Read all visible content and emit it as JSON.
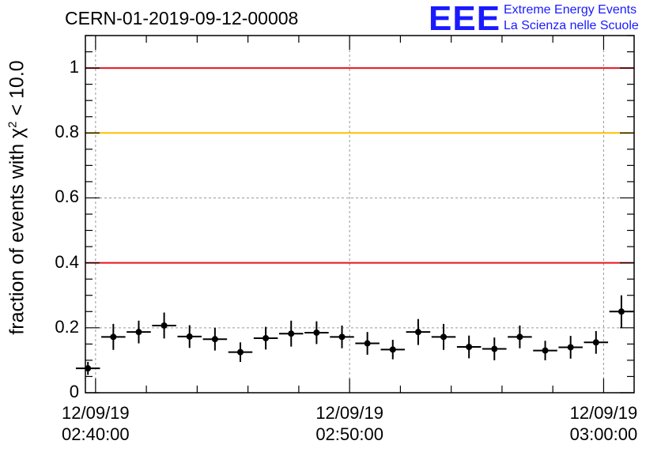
{
  "chart_data": {
    "type": "scatter",
    "title": "CERN-01-2019-09-12-00008",
    "ylabel_prefix": "fraction of events with ",
    "ylabel_symbol": "χ",
    "ylabel_sup": "2",
    "ylabel_suffix": " < 10.0",
    "ylim": [
      0,
      1.1
    ],
    "yticks": [
      {
        "value": 0,
        "label": "0"
      },
      {
        "value": 0.2,
        "label": "0.2"
      },
      {
        "value": 0.4,
        "label": "0.4"
      },
      {
        "value": 0.6,
        "label": "0.6"
      },
      {
        "value": 0.8,
        "label": "0.8"
      },
      {
        "value": 1,
        "label": "1"
      }
    ],
    "xlim_minutes": [
      -0.4,
      21.2
    ],
    "xticks": [
      {
        "minute": 0,
        "date": "12/09/19",
        "time": "02:40:00"
      },
      {
        "minute": 10,
        "date": "12/09/19",
        "time": "02:50:00"
      },
      {
        "minute": 20,
        "date": "12/09/19",
        "time": "03:00:00"
      }
    ],
    "grid": true,
    "reference_lines": [
      {
        "y": 1.0,
        "color": "#e8141c"
      },
      {
        "y": 0.8,
        "color": "#ffc000"
      },
      {
        "y": 0.4,
        "color": "#e8141c"
      }
    ],
    "points": [
      {
        "x": -0.3,
        "y": 0.075,
        "err": 0.02
      },
      {
        "x": 0.7,
        "y": 0.172,
        "err": 0.04
      },
      {
        "x": 1.7,
        "y": 0.187,
        "err": 0.035
      },
      {
        "x": 2.7,
        "y": 0.207,
        "err": 0.04
      },
      {
        "x": 3.7,
        "y": 0.173,
        "err": 0.035
      },
      {
        "x": 4.7,
        "y": 0.165,
        "err": 0.035
      },
      {
        "x": 5.7,
        "y": 0.125,
        "err": 0.03
      },
      {
        "x": 6.7,
        "y": 0.168,
        "err": 0.035
      },
      {
        "x": 7.7,
        "y": 0.182,
        "err": 0.04
      },
      {
        "x": 8.7,
        "y": 0.185,
        "err": 0.035
      },
      {
        "x": 9.7,
        "y": 0.172,
        "err": 0.035
      },
      {
        "x": 10.7,
        "y": 0.152,
        "err": 0.035
      },
      {
        "x": 11.7,
        "y": 0.133,
        "err": 0.03
      },
      {
        "x": 12.7,
        "y": 0.187,
        "err": 0.04
      },
      {
        "x": 13.7,
        "y": 0.172,
        "err": 0.04
      },
      {
        "x": 14.7,
        "y": 0.141,
        "err": 0.035
      },
      {
        "x": 15.7,
        "y": 0.135,
        "err": 0.035
      },
      {
        "x": 16.7,
        "y": 0.172,
        "err": 0.035
      },
      {
        "x": 17.7,
        "y": 0.13,
        "err": 0.03
      },
      {
        "x": 18.7,
        "y": 0.14,
        "err": 0.035
      },
      {
        "x": 19.7,
        "y": 0.155,
        "err": 0.035
      },
      {
        "x": 20.7,
        "y": 0.25,
        "err": 0.05
      }
    ],
    "marker_color": "#000000"
  },
  "logo": {
    "text": "EEE",
    "line1": "Extreme Energy Events",
    "line2": "La Scienza nelle Scuole",
    "color": "#1a1aff"
  }
}
